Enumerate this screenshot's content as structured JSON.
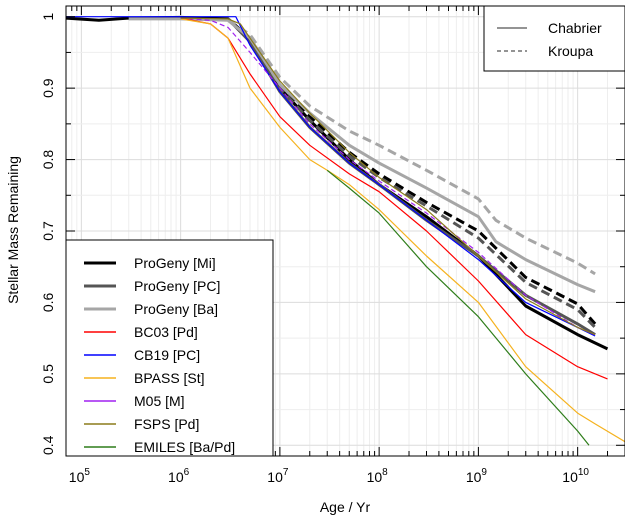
{
  "chart_data": {
    "type": "line",
    "xlabel": "Age / Yr",
    "ylabel": "Stellar Mass Remaining",
    "xscale": "log",
    "xlim": [
      70000,
      30000000000
    ],
    "ylim": [
      0.385,
      1.015
    ],
    "grid": true,
    "x_ticks": [
      {
        "value": 100000,
        "base": "10",
        "exp": "5"
      },
      {
        "value": 1000000,
        "base": "10",
        "exp": "6"
      },
      {
        "value": 10000000,
        "base": "10",
        "exp": "7"
      },
      {
        "value": 100000000,
        "base": "10",
        "exp": "8"
      },
      {
        "value": 1000000000,
        "base": "10",
        "exp": "9"
      },
      {
        "value": 10000000000,
        "base": "10",
        "exp": "10"
      }
    ],
    "y_ticks": [
      {
        "value": 0.4,
        "label": "0.4"
      },
      {
        "value": 0.5,
        "label": "0.5"
      },
      {
        "value": 0.6,
        "label": "0.6"
      },
      {
        "value": 0.7,
        "label": "0.7"
      },
      {
        "value": 0.8,
        "label": "0.8"
      },
      {
        "value": 0.9,
        "label": "0.9"
      },
      {
        "value": 1.0,
        "label": "1"
      }
    ],
    "imf_legend": {
      "placement": "top-right",
      "entries": [
        {
          "label": "Chabrier",
          "dash": "solid"
        },
        {
          "label": "Kroupa",
          "dash": "dashed"
        }
      ]
    },
    "legend": {
      "placement": "bottom-left",
      "entries": [
        {
          "label": "ProGeny [Mi]",
          "color": "#000000",
          "width": 3
        },
        {
          "label": "ProGeny [PC]",
          "color": "#555555",
          "width": 3
        },
        {
          "label": "ProGeny [Ba]",
          "color": "#A6A6A6",
          "width": 3
        },
        {
          "label": "BC03 [Pd]",
          "color": "#FF0000",
          "width": 1.5
        },
        {
          "label": "CB19 [PC]",
          "color": "#0000FF",
          "width": 1.5
        },
        {
          "label": "BPASS [St]",
          "color": "#F5B21F",
          "width": 1.5
        },
        {
          "label": "M05 [M]",
          "color": "#A020F0",
          "width": 1.5
        },
        {
          "label": "FSPS [Pd]",
          "color": "#8B7C1A",
          "width": 1.5
        },
        {
          "label": "EMILES [Ba/Pd]",
          "color": "#2E7D1A",
          "width": 1.5
        }
      ]
    },
    "series": [
      {
        "name": "ProGeny [Mi]",
        "color": "#000000",
        "width": 3,
        "dash": "solid",
        "x": [
          70000,
          150000,
          300000,
          1000000,
          3000000,
          5000000,
          10000000,
          20000000,
          50000000,
          100000000,
          300000000,
          1000000000,
          3000000000,
          10000000000,
          20000000000
        ],
        "y": [
          0.998,
          0.995,
          0.998,
          0.999,
          0.997,
          0.97,
          0.9,
          0.855,
          0.8,
          0.765,
          0.72,
          0.665,
          0.595,
          0.555,
          0.535
        ]
      },
      {
        "name": "ProGeny [Mi]",
        "color": "#000000",
        "width": 3,
        "dash": "dashed",
        "x": [
          3000000,
          5000000,
          10000000,
          20000000,
          50000000,
          100000000,
          300000000,
          1000000000,
          3000000000,
          10000000000,
          15000000000
        ],
        "y": [
          0.997,
          0.97,
          0.9,
          0.86,
          0.81,
          0.78,
          0.74,
          0.7,
          0.635,
          0.598,
          0.57
        ]
      },
      {
        "name": "ProGeny [PC]",
        "color": "#555555",
        "width": 3,
        "dash": "solid",
        "x": [
          3000000,
          5000000,
          10000000,
          20000000,
          50000000,
          100000000,
          300000000,
          1000000000,
          3000000000,
          10000000000,
          15000000000
        ],
        "y": [
          0.997,
          0.965,
          0.895,
          0.845,
          0.795,
          0.765,
          0.715,
          0.665,
          0.61,
          0.57,
          0.555
        ]
      },
      {
        "name": "ProGeny [PC]",
        "color": "#555555",
        "width": 3,
        "dash": "dashed",
        "x": [
          3000000,
          5000000,
          10000000,
          20000000,
          50000000,
          100000000,
          300000000,
          1000000000,
          3000000000,
          10000000000,
          15000000000
        ],
        "y": [
          0.997,
          0.968,
          0.9,
          0.855,
          0.805,
          0.775,
          0.735,
          0.69,
          0.628,
          0.59,
          0.565
        ]
      },
      {
        "name": "ProGeny [Ba]",
        "color": "#A6A6A6",
        "width": 3,
        "dash": "solid",
        "x": [
          300000,
          1000000,
          3000000,
          5000000,
          10000000,
          20000000,
          50000000,
          100000000,
          300000000,
          1000000000,
          1500000000,
          3000000000,
          10000000000,
          15000000000
        ],
        "y": [
          0.997,
          0.997,
          0.995,
          0.97,
          0.905,
          0.865,
          0.82,
          0.795,
          0.76,
          0.72,
          0.685,
          0.66,
          0.625,
          0.615
        ]
      },
      {
        "name": "ProGeny [Ba]",
        "color": "#A6A6A6",
        "width": 3,
        "dash": "dashed",
        "x": [
          3000000,
          5000000,
          10000000,
          20000000,
          50000000,
          100000000,
          300000000,
          1000000000,
          1500000000,
          3000000000,
          10000000000,
          15000000000
        ],
        "y": [
          0.996,
          0.975,
          0.915,
          0.875,
          0.84,
          0.82,
          0.785,
          0.745,
          0.715,
          0.69,
          0.655,
          0.64
        ]
      },
      {
        "name": "BC03 [Pd]",
        "color": "#FF0000",
        "width": 1.2,
        "dash": "solid",
        "x": [
          1000000,
          2000000,
          3000000,
          5000000,
          10000000,
          20000000,
          50000000,
          100000000,
          300000000,
          1000000000,
          3000000000,
          10000000000,
          20000000000
        ],
        "y": [
          0.998,
          0.99,
          0.97,
          0.92,
          0.86,
          0.82,
          0.78,
          0.755,
          0.7,
          0.63,
          0.555,
          0.51,
          0.493
        ]
      },
      {
        "name": "CB19 [PC]",
        "color": "#0000FF",
        "width": 1.2,
        "dash": "solid",
        "x": [
          70000,
          3000000,
          3600000,
          5000000,
          10000000,
          20000000,
          50000000,
          100000000,
          300000000,
          1000000000,
          3000000000,
          10000000000,
          15000000000
        ],
        "y": [
          1.0,
          1.0,
          1.0,
          0.96,
          0.895,
          0.845,
          0.795,
          0.765,
          0.715,
          0.66,
          0.6,
          0.565,
          0.553
        ]
      },
      {
        "name": "BPASS [St]",
        "color": "#F5B21F",
        "width": 1.2,
        "dash": "solid",
        "x": [
          1000000,
          2000000,
          3000000,
          5000000,
          10000000,
          20000000,
          30000000,
          50000000,
          100000000,
          300000000,
          1000000000,
          3000000000,
          10000000000,
          15000000000,
          30000000000
        ],
        "y": [
          0.997,
          0.99,
          0.97,
          0.9,
          0.845,
          0.8,
          0.785,
          0.765,
          0.73,
          0.665,
          0.6,
          0.51,
          0.445,
          0.43,
          0.405
        ]
      },
      {
        "name": "M05 [M]",
        "color": "#A020F0",
        "width": 1.2,
        "dash": "dashed",
        "x": [
          1000000,
          2000000,
          3000000,
          5000000,
          10000000,
          20000000,
          50000000,
          100000000,
          300000000,
          1000000000,
          3000000000,
          10000000000,
          15000000000
        ],
        "y": [
          0.998,
          0.995,
          0.985,
          0.95,
          0.9,
          0.85,
          0.8,
          0.77,
          0.725,
          0.67,
          0.61,
          0.565,
          0.555
        ]
      },
      {
        "name": "FSPS [Pd]",
        "color": "#8B7C1A",
        "width": 1.2,
        "dash": "solid",
        "x": [
          1000000,
          3000000,
          4000000,
          5000000,
          10000000,
          20000000,
          50000000,
          100000000,
          300000000,
          1000000000,
          3000000000,
          10000000000,
          15000000000
        ],
        "y": [
          0.998,
          0.997,
          0.99,
          0.97,
          0.91,
          0.865,
          0.81,
          0.775,
          0.73,
          0.665,
          0.605,
          0.565,
          0.555
        ]
      },
      {
        "name": "EMILES [Ba/Pd]",
        "color": "#2E7D1A",
        "width": 1.2,
        "dash": "solid",
        "x": [
          30000000,
          50000000,
          100000000,
          300000000,
          1000000000,
          3000000000,
          10000000000,
          13000000000
        ],
        "y": [
          0.785,
          0.76,
          0.725,
          0.65,
          0.58,
          0.5,
          0.42,
          0.4
        ]
      }
    ]
  }
}
